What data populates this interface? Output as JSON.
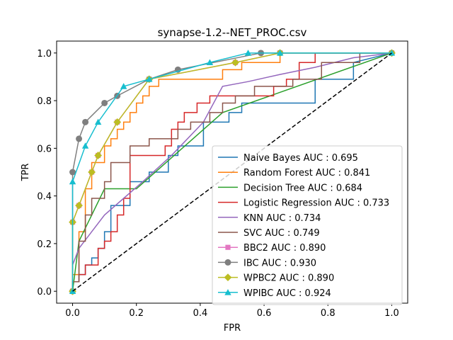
{
  "chart_data": {
    "type": "line",
    "title": "synapse-1.2--NET_PROC.csv",
    "xlabel": "FPR",
    "ylabel": "TPR",
    "xlim": [
      -0.05,
      1.05
    ],
    "ylim": [
      -0.05,
      1.05
    ],
    "x_ticks": [
      0.0,
      0.2,
      0.4,
      0.6,
      0.8,
      1.0
    ],
    "y_ticks": [
      0.0,
      0.2,
      0.4,
      0.6,
      0.8,
      1.0
    ],
    "x_tick_labels": [
      "0.0",
      "0.2",
      "0.4",
      "0.6",
      "0.8",
      "1.0"
    ],
    "y_tick_labels": [
      "0.0",
      "0.2",
      "0.4",
      "0.6",
      "0.8",
      "1.0"
    ],
    "grid": false,
    "legend_position": "lower-right",
    "diagonal": {
      "x": [
        0,
        1
      ],
      "y": [
        0,
        1
      ],
      "color": "#000000",
      "style": "dashed"
    },
    "series": [
      {
        "name": "Naive Bayes AUC : 0.695",
        "color": "#1f77b4",
        "marker": "none",
        "x": [
          0,
          0,
          0.02,
          0.02,
          0.04,
          0.04,
          0.06,
          0.06,
          0.08,
          0.08,
          0.1,
          0.1,
          0.12,
          0.12,
          0.18,
          0.18,
          0.24,
          0.24,
          0.3,
          0.3,
          0.33,
          0.33,
          0.41,
          0.41,
          0.49,
          0.49,
          0.53,
          0.53,
          0.76,
          0.76,
          0.88,
          0.88,
          1.0
        ],
        "y": [
          0,
          0.04,
          0.04,
          0.07,
          0.07,
          0.11,
          0.11,
          0.14,
          0.14,
          0.18,
          0.18,
          0.25,
          0.25,
          0.36,
          0.36,
          0.46,
          0.46,
          0.5,
          0.5,
          0.57,
          0.57,
          0.61,
          0.61,
          0.71,
          0.71,
          0.75,
          0.75,
          0.79,
          0.79,
          0.89,
          0.89,
          0.96,
          1.0
        ]
      },
      {
        "name": "Random Forest AUC : 0.841",
        "color": "#ff7f0e",
        "marker": "none",
        "x": [
          0,
          0,
          0.02,
          0.02,
          0.04,
          0.04,
          0.06,
          0.06,
          0.1,
          0.1,
          0.12,
          0.12,
          0.14,
          0.14,
          0.16,
          0.16,
          0.18,
          0.18,
          0.2,
          0.2,
          0.22,
          0.22,
          0.24,
          0.24,
          0.27,
          0.27,
          0.47,
          0.47,
          0.53,
          0.53,
          0.65,
          0.65,
          1.0
        ],
        "y": [
          0,
          0.07,
          0.07,
          0.25,
          0.25,
          0.43,
          0.43,
          0.54,
          0.54,
          0.61,
          0.61,
          0.64,
          0.64,
          0.68,
          0.68,
          0.71,
          0.71,
          0.75,
          0.75,
          0.79,
          0.79,
          0.82,
          0.82,
          0.86,
          0.86,
          0.89,
          0.89,
          0.93,
          0.93,
          0.96,
          0.96,
          1.0,
          1.0
        ]
      },
      {
        "name": "Decision Tree AUC : 0.684",
        "color": "#2ca02c",
        "marker": "none",
        "x": [
          0,
          0.02,
          0.06,
          0.1,
          0.2,
          0.47,
          1.0
        ],
        "y": [
          0,
          0.21,
          0.32,
          0.43,
          0.43,
          0.75,
          1.0
        ]
      },
      {
        "name": "Logistic Regression AUC : 0.733",
        "color": "#d62728",
        "marker": "none",
        "x": [
          0,
          0,
          0.02,
          0.02,
          0.04,
          0.04,
          0.08,
          0.08,
          0.1,
          0.1,
          0.12,
          0.12,
          0.14,
          0.14,
          0.16,
          0.16,
          0.18,
          0.18,
          0.29,
          0.29,
          0.31,
          0.31,
          0.33,
          0.33,
          0.35,
          0.35,
          0.39,
          0.39,
          0.43,
          0.43,
          0.63,
          0.63,
          0.67,
          0.67,
          0.71,
          0.71,
          0.76,
          0.76,
          1.0
        ],
        "y": [
          0,
          0.04,
          0.04,
          0.07,
          0.07,
          0.11,
          0.11,
          0.18,
          0.18,
          0.21,
          0.21,
          0.25,
          0.25,
          0.32,
          0.32,
          0.39,
          0.39,
          0.57,
          0.57,
          0.61,
          0.61,
          0.68,
          0.68,
          0.71,
          0.71,
          0.75,
          0.75,
          0.79,
          0.79,
          0.82,
          0.82,
          0.86,
          0.86,
          0.89,
          0.89,
          0.96,
          0.96,
          1.0,
          1.0
        ]
      },
      {
        "name": "KNN AUC : 0.734",
        "color": "#9467bd",
        "marker": "none",
        "x": [
          0,
          0.02,
          0.06,
          0.1,
          0.16,
          0.22,
          0.31,
          0.41,
          0.47,
          0.55,
          0.65,
          0.76,
          0.88,
          1.0
        ],
        "y": [
          0.11,
          0.18,
          0.25,
          0.32,
          0.39,
          0.46,
          0.57,
          0.71,
          0.86,
          0.88,
          0.91,
          0.94,
          0.98,
          1.0
        ]
      },
      {
        "name": "SVC AUC : 0.749",
        "color": "#8c564b",
        "marker": "none",
        "x": [
          0,
          0,
          0.02,
          0.02,
          0.04,
          0.04,
          0.06,
          0.06,
          0.1,
          0.1,
          0.12,
          0.12,
          0.18,
          0.18,
          0.24,
          0.24,
          0.33,
          0.33,
          0.37,
          0.37,
          0.43,
          0.43,
          0.47,
          0.47,
          0.51,
          0.51,
          0.57,
          0.57,
          0.69,
          0.69,
          0.78,
          0.78,
          0.9,
          0.9,
          1.0
        ],
        "y": [
          0,
          0.04,
          0.04,
          0.21,
          0.21,
          0.32,
          0.32,
          0.39,
          0.39,
          0.46,
          0.46,
          0.54,
          0.54,
          0.61,
          0.61,
          0.64,
          0.64,
          0.68,
          0.68,
          0.71,
          0.71,
          0.75,
          0.75,
          0.79,
          0.79,
          0.82,
          0.82,
          0.86,
          0.86,
          0.89,
          0.89,
          0.96,
          0.96,
          1.0,
          1.0
        ]
      },
      {
        "name": "BBC2 AUC : 0.890",
        "color": "#e377c2",
        "marker": "square",
        "x": [
          0,
          0,
          0.02,
          0.06,
          0.08,
          0.14,
          0.24,
          0.51,
          0.65,
          1.0
        ],
        "y": [
          0,
          0.29,
          0.36,
          0.5,
          0.57,
          0.71,
          0.89,
          0.96,
          1.0,
          1.0
        ]
      },
      {
        "name": "IBC AUC : 0.930",
        "color": "#7f7f7f",
        "marker": "circle",
        "x": [
          0,
          0,
          0.02,
          0.04,
          0.1,
          0.14,
          0.24,
          0.33,
          0.59,
          0.65,
          1.0
        ],
        "y": [
          0,
          0.5,
          0.64,
          0.71,
          0.79,
          0.82,
          0.89,
          0.93,
          1.0,
          1.0,
          1.0
        ]
      },
      {
        "name": "WPBC2 AUC : 0.890",
        "color": "#bcbd22",
        "marker": "diamond",
        "x": [
          0,
          0,
          0.02,
          0.06,
          0.08,
          0.14,
          0.24,
          0.51,
          0.65,
          1.0
        ],
        "y": [
          0,
          0.29,
          0.36,
          0.5,
          0.57,
          0.71,
          0.89,
          0.96,
          1.0,
          1.0
        ]
      },
      {
        "name": "WPIBC AUC : 0.924",
        "color": "#17becf",
        "marker": "triangle",
        "x": [
          0,
          0,
          0.04,
          0.08,
          0.16,
          0.24,
          0.43,
          0.55,
          0.65,
          1.0
        ],
        "y": [
          0,
          0.46,
          0.61,
          0.71,
          0.86,
          0.89,
          0.96,
          1.0,
          1.0,
          1.0
        ]
      }
    ]
  }
}
